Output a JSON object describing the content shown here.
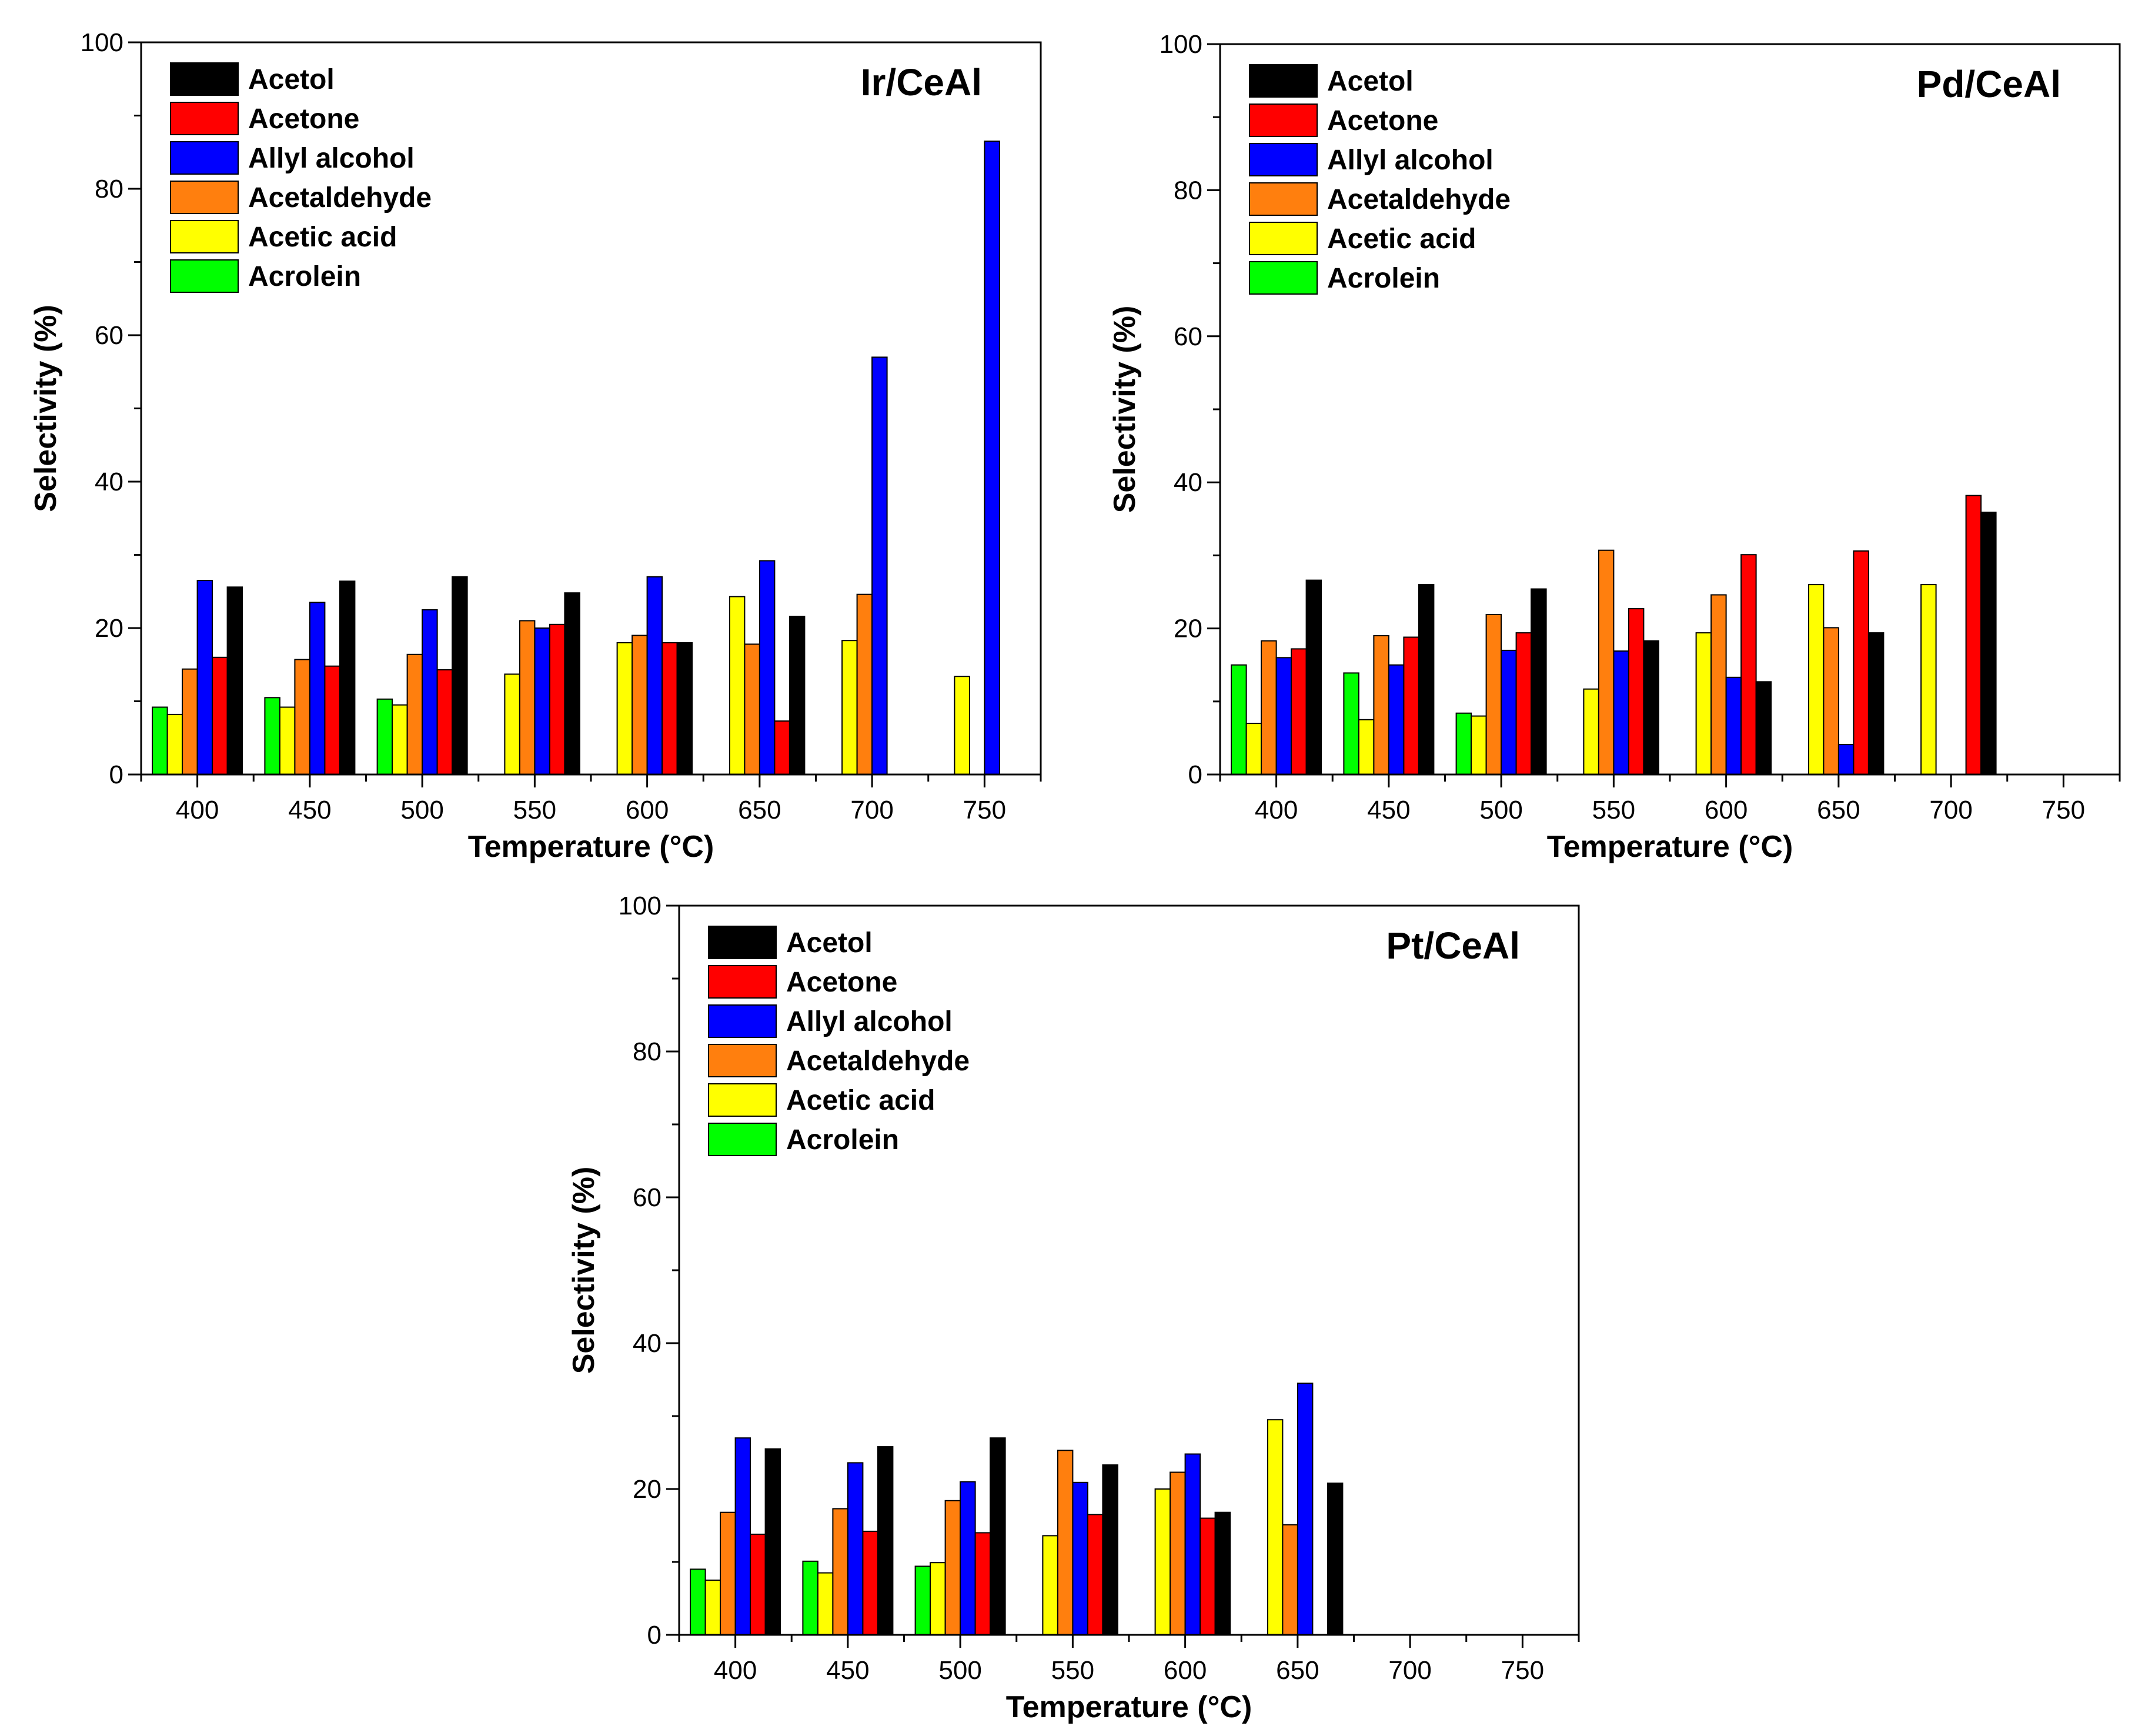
{
  "colors": {
    "Acetol": "#000000",
    "Acetone": "#ff0000",
    "Allyl alcohol": "#0000ff",
    "Acetaldehyde": "#ff7f0e",
    "Acetic acid": "#ffff00",
    "Acrolein": "#00ff00"
  },
  "chart_data": [
    {
      "type": "bar",
      "title": "Ir/CeAl",
      "xlabel": "Temperature (°C)",
      "ylabel": "Selectivity (%)",
      "ylim": [
        0,
        100
      ],
      "xlim": [
        375,
        775
      ],
      "yticks": [
        0,
        20,
        40,
        60,
        80,
        100
      ],
      "categories": [
        400,
        450,
        500,
        550,
        600,
        650,
        700,
        750
      ],
      "legend": [
        "Acetol",
        "Acetone",
        "Allyl alcohol",
        "Acetaldehyde",
        "Acetic acid",
        "Acrolein"
      ],
      "legend_position": "top-left",
      "series": [
        {
          "name": "Acrolein",
          "values": [
            9.2,
            10.5,
            10.3,
            null,
            null,
            null,
            null,
            null
          ]
        },
        {
          "name": "Acetic acid",
          "values": [
            8.2,
            9.2,
            9.5,
            13.7,
            18.0,
            24.3,
            18.3,
            13.4
          ]
        },
        {
          "name": "Acetaldehyde",
          "values": [
            14.4,
            15.7,
            16.4,
            21.0,
            19.0,
            17.8,
            24.6,
            null
          ]
        },
        {
          "name": "Allyl alcohol",
          "values": [
            26.5,
            23.5,
            22.5,
            20.0,
            27.0,
            29.2,
            57.0,
            86.5
          ]
        },
        {
          "name": "Acetone",
          "values": [
            16.0,
            14.8,
            14.3,
            20.5,
            18.0,
            7.3,
            null,
            null
          ]
        },
        {
          "name": "Acetol",
          "values": [
            25.6,
            26.4,
            27.0,
            24.8,
            18.0,
            21.6,
            null,
            null
          ]
        }
      ]
    },
    {
      "type": "bar",
      "title": "Pd/CeAl",
      "xlabel": "Temperature (°C)",
      "ylabel": "Selectivity (%)",
      "ylim": [
        0,
        100
      ],
      "xlim": [
        375,
        775
      ],
      "yticks": [
        0,
        20,
        40,
        60,
        80,
        100
      ],
      "categories": [
        400,
        450,
        500,
        550,
        600,
        650,
        700,
        750
      ],
      "legend": [
        "Acetol",
        "Acetone",
        "Allyl alcohol",
        "Acetaldehyde",
        "Acetic acid",
        "Acrolein"
      ],
      "legend_position": "top-left",
      "series": [
        {
          "name": "Acrolein",
          "values": [
            15.0,
            13.9,
            8.4,
            null,
            null,
            null,
            null,
            null
          ]
        },
        {
          "name": "Acetic acid",
          "values": [
            7.0,
            7.5,
            8.0,
            11.7,
            19.4,
            26.0,
            26.0,
            null
          ]
        },
        {
          "name": "Acetaldehyde",
          "values": [
            18.3,
            19.0,
            21.9,
            30.7,
            24.6,
            20.1,
            null,
            null
          ]
        },
        {
          "name": "Allyl alcohol",
          "values": [
            16.0,
            15.0,
            17.0,
            16.9,
            13.3,
            4.1,
            null,
            null
          ]
        },
        {
          "name": "Acetone",
          "values": [
            17.2,
            18.8,
            19.4,
            22.7,
            30.1,
            30.6,
            38.2,
            null
          ]
        },
        {
          "name": "Acetol",
          "values": [
            26.6,
            26.0,
            25.4,
            18.3,
            12.7,
            19.4,
            35.9,
            null
          ]
        }
      ]
    },
    {
      "type": "bar",
      "title": "Pt/CeAl",
      "xlabel": "Temperature (°C)",
      "ylabel": "Selectivity (%)",
      "ylim": [
        0,
        100
      ],
      "xlim": [
        375,
        775
      ],
      "yticks": [
        0,
        20,
        40,
        60,
        80,
        100
      ],
      "categories": [
        400,
        450,
        500,
        550,
        600,
        650,
        700,
        750
      ],
      "legend": [
        "Acetol",
        "Acetone",
        "Allyl alcohol",
        "Acetaldehyde",
        "Acetic acid",
        "Acrolein"
      ],
      "legend_position": "top-left",
      "series": [
        {
          "name": "Acrolein",
          "values": [
            9.0,
            10.1,
            9.4,
            null,
            null,
            null,
            null,
            null
          ]
        },
        {
          "name": "Acetic acid",
          "values": [
            7.5,
            8.5,
            9.9,
            13.6,
            20.0,
            29.5,
            null,
            null
          ]
        },
        {
          "name": "Acetaldehyde",
          "values": [
            16.8,
            17.3,
            18.4,
            25.3,
            22.3,
            15.1,
            null,
            null
          ]
        },
        {
          "name": "Allyl alcohol",
          "values": [
            27.0,
            23.6,
            21.0,
            20.9,
            24.8,
            34.5,
            null,
            null
          ]
        },
        {
          "name": "Acetone",
          "values": [
            13.8,
            14.2,
            14.0,
            16.5,
            16.0,
            null,
            null,
            null
          ]
        },
        {
          "name": "Acetol",
          "values": [
            25.5,
            25.8,
            27.0,
            23.3,
            16.8,
            20.8,
            null,
            null
          ]
        }
      ]
    }
  ]
}
